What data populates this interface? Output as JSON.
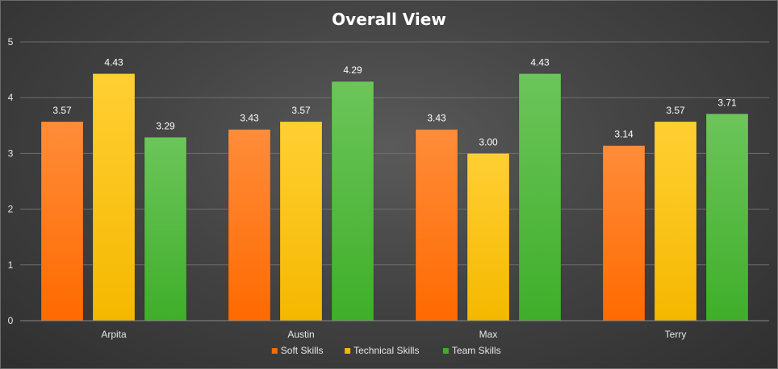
{
  "chart_data": {
    "type": "bar",
    "title": "Overall View",
    "categories": [
      "Arpita",
      "Austin",
      "Max",
      "Terry"
    ],
    "series": [
      {
        "name": "Soft Skills",
        "values": [
          3.57,
          3.43,
          3.43,
          3.14
        ],
        "color": "#ff6a00",
        "color_light": "#ff8c3a"
      },
      {
        "name": "Technical Skills",
        "values": [
          4.43,
          3.57,
          3.0,
          3.57
        ],
        "color": "#f5b800",
        "color_light": "#ffcf33"
      },
      {
        "name": "Team Skills",
        "values": [
          3.29,
          4.29,
          4.43,
          3.71
        ],
        "color": "#3fae2a",
        "color_light": "#6cc55a"
      }
    ],
    "data_labels": [
      [
        "3.57",
        "3.43",
        "3.43",
        "3.14"
      ],
      [
        "4.43",
        "3.57",
        "3.00",
        "3.57"
      ],
      [
        "3.29",
        "4.29",
        "4.43",
        "3.71"
      ]
    ],
    "ylim": [
      0,
      5
    ],
    "yticks": [
      "0",
      "1",
      "2",
      "3",
      "4",
      "5"
    ],
    "grid": true,
    "legend_position": "bottom"
  }
}
